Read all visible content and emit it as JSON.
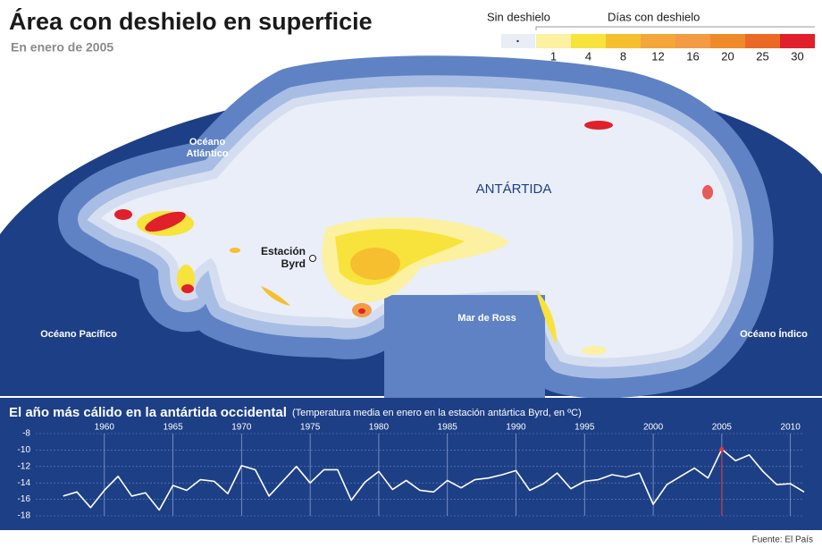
{
  "header": {
    "title": "Área con deshielo en superficie",
    "subtitle": "En enero de 2005"
  },
  "legend": {
    "no_melt": {
      "label": "Sin deshielo",
      "color": "#e9edf5"
    },
    "title": "Días con deshielo",
    "bins": [
      {
        "label": "1",
        "color": "#fbf1a0"
      },
      {
        "label": "4",
        "color": "#f8e33c"
      },
      {
        "label": "8",
        "color": "#f6bf2f"
      },
      {
        "label": "12",
        "color": "#f4a63a"
      },
      {
        "label": "16",
        "color": "#f39a44"
      },
      {
        "label": "20",
        "color": "#ef8a2b"
      },
      {
        "label": "25",
        "color": "#ea6a25"
      },
      {
        "label": "30",
        "color": "#e0202a"
      }
    ]
  },
  "map": {
    "atlantic": [
      "Océano",
      "Atlántico"
    ],
    "antarctica": "ANTÁRTIDA",
    "byrd": [
      "Estación",
      "Byrd"
    ],
    "ross": "Mar de Ross",
    "pacific": "Océano Pacífico",
    "indian": "Océano Índico"
  },
  "chart_data": {
    "type": "line",
    "title": "El año más cálido en la antártida occidental",
    "subtitle": "(Temperatura media en enero en la estación antártica Byrd, en ºC)",
    "x": [
      1957,
      1958,
      1959,
      1960,
      1961,
      1962,
      1963,
      1964,
      1965,
      1966,
      1967,
      1968,
      1969,
      1970,
      1971,
      1972,
      1973,
      1974,
      1975,
      1976,
      1977,
      1978,
      1979,
      1980,
      1981,
      1982,
      1983,
      1984,
      1985,
      1986,
      1987,
      1988,
      1989,
      1990,
      1991,
      1992,
      1993,
      1994,
      1995,
      1996,
      1997,
      1998,
      1999,
      2000,
      2001,
      2002,
      2003,
      2004,
      2005,
      2006,
      2007,
      2008,
      2009,
      2010,
      2011
    ],
    "values": [
      -15.6,
      -15.1,
      -17.0,
      -14.9,
      -13.2,
      -15.6,
      -15.2,
      -17.3,
      -14.3,
      -14.9,
      -13.6,
      -13.8,
      -15.3,
      -11.9,
      -12.4,
      -15.6,
      -13.8,
      -12.0,
      -14.0,
      -12.4,
      -12.4,
      -16.1,
      -13.9,
      -12.6,
      -14.8,
      -13.7,
      -14.9,
      -15.1,
      -13.7,
      -14.6,
      -13.6,
      -13.4,
      -13.0,
      -12.5,
      -14.9,
      -14.1,
      -12.8,
      -14.7,
      -13.8,
      -13.6,
      -13.0,
      -13.3,
      -12.8,
      -16.6,
      -14.2,
      -13.2,
      -12.2,
      -13.4,
      -9.9,
      -11.3,
      -10.6,
      -12.6,
      -14.2,
      -14.1,
      -15.1
    ],
    "color": "#ffffff",
    "highlight_color": "#e8333a",
    "xlim": [
      1955,
      2011
    ],
    "xticks": [
      1960,
      1965,
      1970,
      1975,
      1980,
      1985,
      1990,
      1995,
      2000,
      2005,
      2010
    ],
    "ylim": [
      -18,
      -8
    ],
    "yticks": [
      -8,
      -10,
      -12,
      -14,
      -16,
      -18
    ],
    "grid": true
  },
  "source": "Fuente: El País"
}
